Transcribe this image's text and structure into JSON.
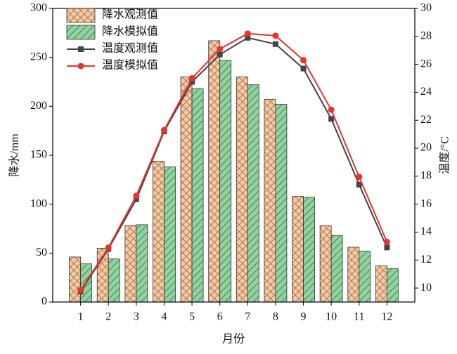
{
  "chart_data": {
    "type": "bar-line",
    "x_label": "月份",
    "y_label": "降水/mm",
    "y2_label": "温度/°C",
    "categories": [
      1,
      2,
      3,
      4,
      5,
      6,
      7,
      8,
      9,
      10,
      11,
      12
    ],
    "series": [
      {
        "name": "降水观测值",
        "kind": "bar",
        "color": "#f7c9a3",
        "pattern": "cross",
        "values": [
          46,
          55,
          78,
          144,
          230,
          267,
          230,
          207,
          108,
          78,
          56,
          37
        ]
      },
      {
        "name": "降水模拟值",
        "kind": "bar",
        "color": "#8fd3a0",
        "pattern": "diagonal",
        "values": [
          39,
          44,
          79,
          138,
          218,
          247,
          222,
          202,
          107,
          68,
          52,
          34
        ]
      },
      {
        "name": "温度观测值",
        "kind": "line",
        "axis": "y2",
        "color": "#444444",
        "marker": "square",
        "values": [
          9.75,
          12.8,
          16.35,
          21.2,
          24.75,
          26.7,
          27.9,
          27.45,
          25.7,
          22.1,
          17.4,
          12.9
        ]
      },
      {
        "name": "温度模拟值",
        "kind": "line",
        "axis": "y2",
        "color": "#e8332f",
        "marker": "circle",
        "values": [
          9.85,
          12.9,
          16.6,
          21.3,
          25.0,
          27.1,
          28.2,
          28.05,
          26.3,
          22.75,
          17.95,
          13.3
        ]
      }
    ],
    "ylim": [
      0,
      300
    ],
    "yticks": [
      0,
      50,
      100,
      150,
      200,
      250,
      300
    ],
    "y2lim": [
      9,
      30
    ],
    "y2ticks": [
      10,
      12,
      14,
      16,
      18,
      20,
      22,
      24,
      26,
      28,
      30
    ],
    "legend": "upper-left"
  }
}
